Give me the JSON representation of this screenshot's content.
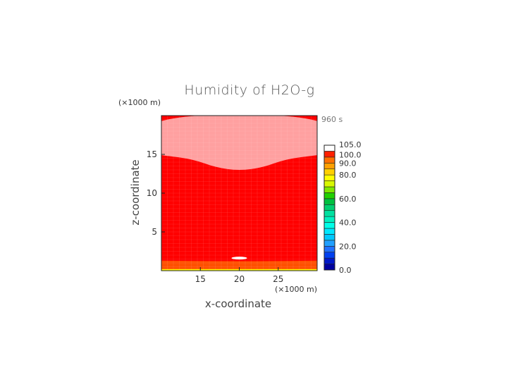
{
  "chart_data": {
    "type": "heatmap",
    "title": "Humidity of H2O-g",
    "time_label": "960 s",
    "x_unit": "(×1000 m)",
    "z_unit": "(×1000 m)",
    "xlabel": "x-coordinate",
    "ylabel": "z-coordinate",
    "xlim": [
      10,
      30
    ],
    "ylim": [
      0,
      20
    ],
    "x_ticks": [
      {
        "value": 15,
        "label": "15"
      },
      {
        "value": 20,
        "label": "20"
      },
      {
        "value": 25,
        "label": "25"
      }
    ],
    "y_ticks": [
      {
        "value": 5,
        "label": "5"
      },
      {
        "value": 10,
        "label": "10"
      },
      {
        "value": 15,
        "label": "15"
      }
    ],
    "colorbar": {
      "min": 0,
      "max": 105,
      "ticks": [
        {
          "value": 0,
          "label": "0.0"
        },
        {
          "value": 20,
          "label": "20.0"
        },
        {
          "value": 40,
          "label": "40.0"
        },
        {
          "value": 60,
          "label": "60.0"
        },
        {
          "value": 80,
          "label": "80.0"
        },
        {
          "value": 90,
          "label": "90.0"
        },
        {
          "value": 100,
          "label": "100.0"
        },
        {
          "value": 105,
          "label": "105.0"
        }
      ],
      "levels": [
        {
          "from": 0,
          "to": 5,
          "color": "#0000a0"
        },
        {
          "from": 5,
          "to": 10,
          "color": "#0018c8"
        },
        {
          "from": 10,
          "to": 15,
          "color": "#0040f0"
        },
        {
          "from": 15,
          "to": 20,
          "color": "#2070ff"
        },
        {
          "from": 20,
          "to": 25,
          "color": "#20a0ff"
        },
        {
          "from": 25,
          "to": 30,
          "color": "#00c8ff"
        },
        {
          "from": 30,
          "to": 35,
          "color": "#00e8ff"
        },
        {
          "from": 35,
          "to": 40,
          "color": "#00ffe8"
        },
        {
          "from": 40,
          "to": 45,
          "color": "#00f0c0"
        },
        {
          "from": 45,
          "to": 50,
          "color": "#00e0a0"
        },
        {
          "from": 50,
          "to": 55,
          "color": "#00d070"
        },
        {
          "from": 55,
          "to": 60,
          "color": "#00c040"
        },
        {
          "from": 60,
          "to": 65,
          "color": "#20d000"
        },
        {
          "from": 65,
          "to": 70,
          "color": "#80e800"
        },
        {
          "from": 70,
          "to": 75,
          "color": "#d8f800"
        },
        {
          "from": 75,
          "to": 80,
          "color": "#ffff00"
        },
        {
          "from": 80,
          "to": 85,
          "color": "#ffd000"
        },
        {
          "from": 85,
          "to": 90,
          "color": "#ffa000"
        },
        {
          "from": 90,
          "to": 95,
          "color": "#ff7000"
        },
        {
          "from": 95,
          "to": 100,
          "color": "#ff2000"
        },
        {
          "from": 100,
          "to": 105,
          "color": "#ffffff"
        }
      ]
    },
    "field_regions": [
      {
        "value": 97,
        "color": "#ff0000",
        "description": "bulk"
      },
      {
        "value": 101,
        "color": "#ffa0a0",
        "upper_boundary_z": [
          [
            10,
            14.9
          ],
          [
            14,
            14.4
          ],
          [
            17,
            13.3
          ],
          [
            20,
            12.9
          ],
          [
            23,
            13.3
          ],
          [
            26,
            14.4
          ],
          [
            30,
            14.9
          ]
        ]
      },
      {
        "value": 101,
        "color": "#ffffff",
        "bubble": {
          "x": [
            19.0,
            21.0
          ],
          "z": [
            1.5,
            1.75
          ]
        }
      },
      {
        "value": 92,
        "color": "#ff5000",
        "lower_band_z": [
          0.9,
          1.3
        ]
      },
      {
        "value": 87,
        "color": "#ff9000",
        "lower_band_z": [
          0.5,
          0.9
        ]
      },
      {
        "value": 82,
        "color": "#ffd000",
        "lower_band_z": [
          0.2,
          0.5
        ]
      },
      {
        "value": 77,
        "color": "#ffff00",
        "lower_band_z": [
          0.0,
          0.2
        ]
      }
    ]
  }
}
